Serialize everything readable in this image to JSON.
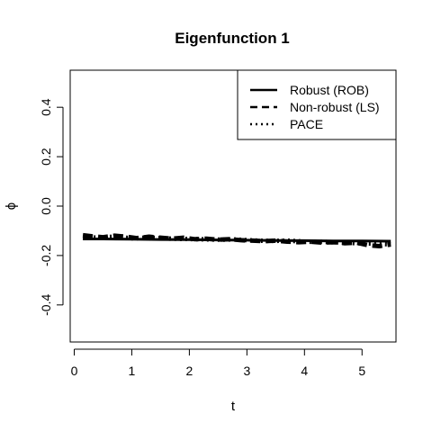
{
  "chart_data": {
    "type": "line",
    "title": "Eigenfunction 1",
    "xlabel": "t",
    "ylabel": "ϕ",
    "xlim": [
      -0.07,
      5.59
    ],
    "ylim": [
      -0.55,
      0.55
    ],
    "xticks": [
      0,
      1,
      2,
      3,
      4,
      5
    ],
    "yticks": [
      -0.4,
      -0.2,
      0.0,
      0.2,
      0.4
    ],
    "xtick_labels": [
      "0",
      "1",
      "2",
      "3",
      "4",
      "5"
    ],
    "ytick_labels": [
      "-0.4",
      "-0.2",
      "0.0",
      "0.2",
      "0.4"
    ],
    "grid": false,
    "legend_position": "top-right",
    "legend": [
      {
        "label": "Robust (ROB)",
        "style": "solid"
      },
      {
        "label": "Non-robust (LS)",
        "style": "dashed"
      },
      {
        "label": "PACE",
        "style": "dotted"
      }
    ],
    "series": [
      {
        "name": "Robust (ROB)",
        "style": "solid",
        "x": [
          0.15,
          0.5,
          1.0,
          1.5,
          2.0,
          2.5,
          3.0,
          3.5,
          4.0,
          4.5,
          5.0,
          5.5
        ],
        "y": [
          -0.133,
          -0.133,
          -0.134,
          -0.135,
          -0.136,
          -0.137,
          -0.138,
          -0.139,
          -0.14,
          -0.141,
          -0.141,
          -0.142
        ]
      },
      {
        "name": "Non-robust (LS)",
        "style": "dashed",
        "x": [
          0.15,
          0.3,
          0.5,
          0.7,
          0.9,
          1.1,
          1.3,
          1.5,
          1.7,
          1.9,
          2.1,
          2.3,
          2.5,
          2.7,
          2.9,
          3.1,
          3.3,
          3.5,
          3.7,
          3.9,
          4.1,
          4.3,
          4.5,
          4.7,
          4.9,
          5.1,
          5.3,
          5.5
        ],
        "y": [
          -0.118,
          -0.122,
          -0.126,
          -0.12,
          -0.124,
          -0.13,
          -0.124,
          -0.128,
          -0.132,
          -0.128,
          -0.134,
          -0.132,
          -0.136,
          -0.134,
          -0.138,
          -0.14,
          -0.142,
          -0.14,
          -0.144,
          -0.146,
          -0.144,
          -0.148,
          -0.146,
          -0.15,
          -0.148,
          -0.158,
          -0.162,
          -0.155
        ]
      },
      {
        "name": "PACE",
        "style": "dotted",
        "x": [
          0.15,
          0.4,
          0.7,
          1.0,
          1.3,
          1.6,
          1.9,
          2.2,
          2.5,
          2.8,
          3.1,
          3.4,
          3.7,
          4.0,
          4.3,
          4.6,
          4.9,
          5.2,
          5.5
        ],
        "y": [
          -0.125,
          -0.128,
          -0.124,
          -0.13,
          -0.127,
          -0.131,
          -0.133,
          -0.134,
          -0.136,
          -0.135,
          -0.139,
          -0.141,
          -0.14,
          -0.144,
          -0.145,
          -0.147,
          -0.15,
          -0.152,
          -0.155
        ]
      }
    ]
  }
}
